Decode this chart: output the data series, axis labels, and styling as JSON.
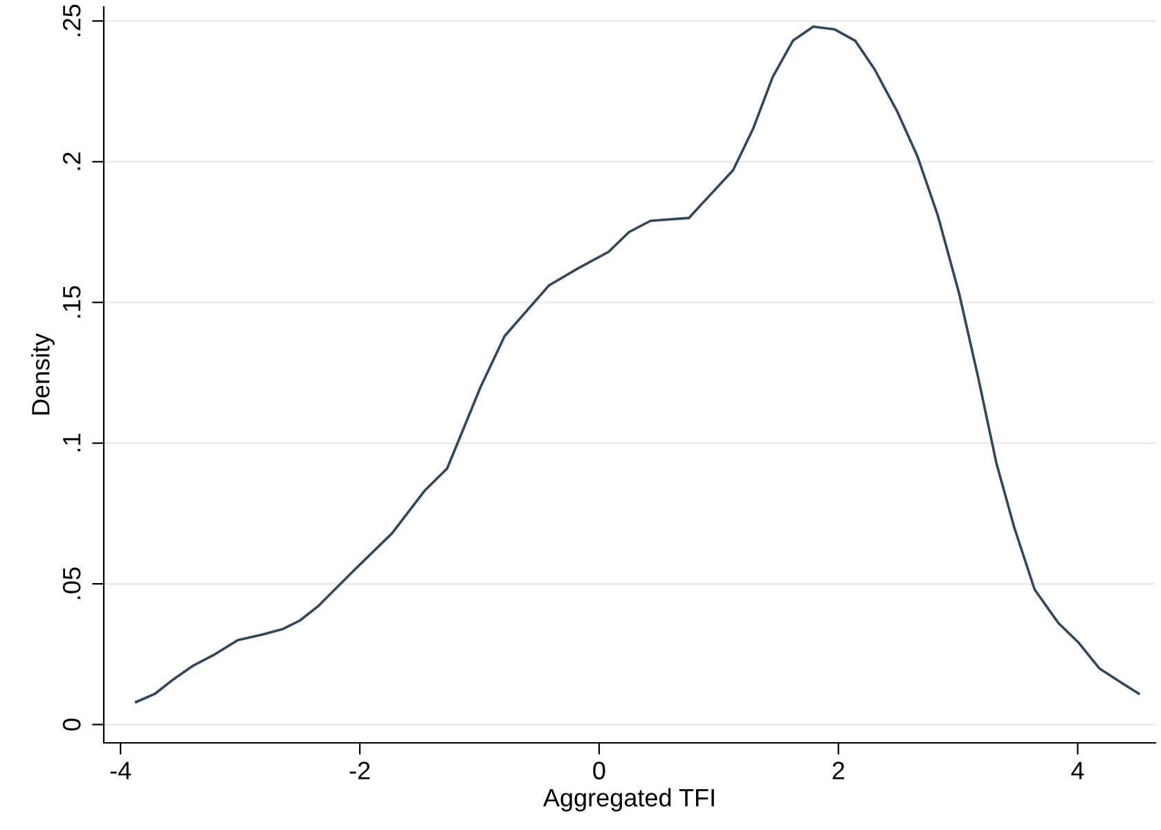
{
  "chart_data": {
    "type": "line",
    "xlabel": "Aggregated TFI",
    "ylabel": "Density",
    "x": [
      -3.87,
      -3.71,
      -3.56,
      -3.39,
      -3.21,
      -3.02,
      -2.81,
      -2.64,
      -2.5,
      -2.35,
      -2.02,
      -1.73,
      -1.46,
      -1.27,
      -0.99,
      -0.79,
      -0.42,
      -0.18,
      0.08,
      0.25,
      0.43,
      0.75,
      1.12,
      1.29,
      1.45,
      1.62,
      1.79,
      1.97,
      2.14,
      2.3,
      2.49,
      2.66,
      2.83,
      3.01,
      3.17,
      3.32,
      3.47,
      3.64,
      3.84,
      4.01,
      4.18,
      4.36,
      4.51
    ],
    "series": [
      {
        "color": "#34465a",
        "values": [
          0.008,
          0.011,
          0.016,
          0.021,
          0.025,
          0.03,
          0.032,
          0.034,
          0.037,
          0.042,
          0.056,
          0.068,
          0.083,
          0.091,
          0.12,
          0.138,
          0.156,
          0.162,
          0.168,
          0.175,
          0.179,
          0.18,
          0.197,
          0.212,
          0.23,
          0.243,
          0.248,
          0.247,
          0.243,
          0.233,
          0.218,
          0.202,
          0.181,
          0.153,
          0.123,
          0.093,
          0.07,
          0.048,
          0.036,
          0.029,
          0.02,
          0.015,
          0.011
        ]
      }
    ],
    "xlim": [
      -4.14,
      4.65
    ],
    "ylim": [
      -0.0065,
      0.255
    ],
    "xticks": [
      -4,
      -2,
      0,
      2,
      4
    ],
    "yticks": [
      0,
      {
        "value": 0.05,
        "label": ".05"
      },
      {
        "value": 0.1,
        "label": ".1"
      },
      {
        "value": 0.15,
        "label": ".15"
      },
      {
        "value": 0.2,
        "label": ".2"
      },
      {
        "value": 0.25,
        "label": ".25"
      }
    ],
    "grid": "y",
    "marker": "none",
    "line_style": "solid"
  }
}
